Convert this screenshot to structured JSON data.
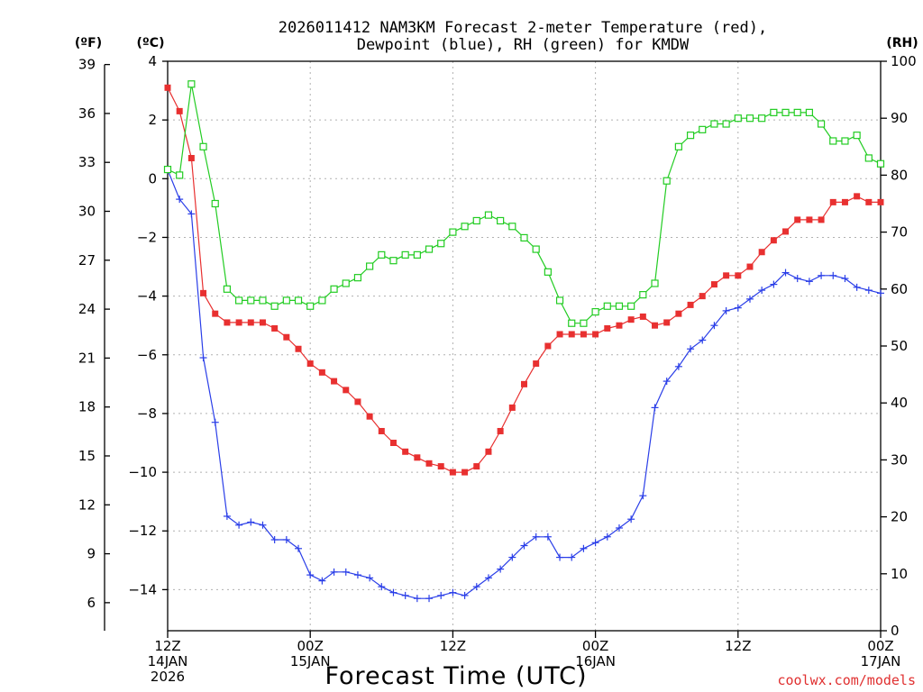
{
  "chart_data": {
    "type": "line",
    "title": [
      "2026011412 NAM3KM Forecast 2-meter Temperature (red),",
      "Dewpoint (blue), RH (green) for KMDW"
    ],
    "xlabel": "Forecast Time (UTC)",
    "credit": "coolwx.com/models",
    "units": {
      "fahrenheit": "(ºF)",
      "celsius": "(ºC)",
      "rh": "(RH)"
    },
    "x_ticks": [
      {
        "hour": 0,
        "lines": [
          "12Z",
          "14JAN",
          "2026"
        ]
      },
      {
        "hour": 12,
        "lines": [
          "00Z",
          "15JAN"
        ]
      },
      {
        "hour": 24,
        "lines": [
          "12Z"
        ]
      },
      {
        "hour": 36,
        "lines": [
          "00Z",
          "16JAN"
        ]
      },
      {
        "hour": 48,
        "lines": [
          "12Z"
        ]
      },
      {
        "hour": 60,
        "lines": [
          "00Z",
          "17JAN"
        ]
      }
    ],
    "x_range": [
      0,
      60
    ],
    "y_celsius": {
      "range": [
        -15.4,
        4
      ],
      "ticks": [
        "4",
        "2",
        "0",
        "−2",
        "−4",
        "−6",
        "−8",
        "−10",
        "−12",
        "−14"
      ],
      "tick_values": [
        4,
        2,
        0,
        -2,
        -4,
        -6,
        -8,
        -10,
        -12,
        -14
      ]
    },
    "y_fahrenheit": {
      "ticks": [
        "39",
        "36",
        "33",
        "30",
        "27",
        "24",
        "21",
        "18",
        "15",
        "12",
        "9",
        "6"
      ],
      "tick_values": [
        39,
        36,
        33,
        30,
        27,
        24,
        21,
        18,
        15,
        12,
        9,
        6
      ]
    },
    "y_rh": {
      "range": [
        0,
        100
      ],
      "ticks": [
        "100",
        "90",
        "80",
        "70",
        "60",
        "50",
        "40",
        "30",
        "20",
        "10",
        "0"
      ],
      "tick_values": [
        100,
        90,
        80,
        70,
        60,
        50,
        40,
        30,
        20,
        10,
        0
      ]
    },
    "x": [
      0,
      1,
      2,
      3,
      4,
      5,
      6,
      7,
      8,
      9,
      10,
      11,
      12,
      13,
      14,
      15,
      16,
      17,
      18,
      19,
      20,
      21,
      22,
      23,
      24,
      25,
      26,
      27,
      28,
      29,
      30,
      31,
      32,
      33,
      34,
      35,
      36,
      37,
      38,
      39,
      40,
      41,
      42,
      43,
      44,
      45,
      46,
      47,
      48,
      49,
      50,
      51,
      52,
      53,
      54,
      55,
      56,
      57,
      58,
      59,
      60
    ],
    "series": [
      {
        "name": "2-meter Temperature",
        "unit": "C",
        "color": "#e83030",
        "marker": "filled-square",
        "values": [
          3.1,
          2.3,
          0.7,
          -3.9,
          -4.6,
          -4.9,
          -4.9,
          -4.9,
          -4.9,
          -5.1,
          -5.4,
          -5.8,
          -6.3,
          -6.6,
          -6.9,
          -7.2,
          -7.6,
          -8.1,
          -8.6,
          -9.0,
          -9.3,
          -9.5,
          -9.7,
          -9.8,
          -10.0,
          -10.0,
          -9.8,
          -9.3,
          -8.6,
          -7.8,
          -7.0,
          -6.3,
          -5.7,
          -5.3,
          -5.3,
          -5.3,
          -5.3,
          -5.1,
          -5.0,
          -4.8,
          -4.7,
          -5.0,
          -4.9,
          -4.6,
          -4.3,
          -4.0,
          -3.6,
          -3.3,
          -3.3,
          -3.0,
          -2.5,
          -2.1,
          -1.8,
          -1.4,
          -1.4,
          -1.4,
          -0.8,
          -0.8,
          -0.6,
          -0.8,
          -0.8
        ]
      },
      {
        "name": "Dewpoint",
        "unit": "C",
        "color": "#2a3ee8",
        "marker": "plus",
        "values": [
          0.3,
          -0.7,
          -1.2,
          -6.1,
          -8.3,
          -11.5,
          -11.8,
          -11.7,
          -11.8,
          -12.3,
          -12.3,
          -12.6,
          -13.5,
          -13.7,
          -13.4,
          -13.4,
          -13.5,
          -13.6,
          -13.9,
          -14.1,
          -14.2,
          -14.3,
          -14.3,
          -14.2,
          -14.1,
          -14.2,
          -13.9,
          -13.6,
          -13.3,
          -12.9,
          -12.5,
          -12.2,
          -12.2,
          -12.9,
          -12.9,
          -12.6,
          -12.4,
          -12.2,
          -11.9,
          -11.6,
          -10.8,
          -7.8,
          -6.9,
          -6.4,
          -5.8,
          -5.5,
          -5.0,
          -4.5,
          -4.4,
          -4.1,
          -3.8,
          -3.6,
          -3.2,
          -3.4,
          -3.5,
          -3.3,
          -3.3,
          -3.4,
          -3.7,
          -3.8,
          -3.9
        ]
      },
      {
        "name": "Relative Humidity",
        "unit": "%",
        "color": "#22cc22",
        "marker": "open-square",
        "values": [
          81,
          80,
          96,
          85,
          75,
          60,
          58,
          58,
          58,
          57,
          58,
          58,
          57,
          58,
          60,
          61,
          62,
          64,
          66,
          65,
          66,
          66,
          67,
          68,
          70,
          71,
          72,
          73,
          72,
          71,
          69,
          67,
          63,
          58,
          54,
          54,
          56,
          57,
          57,
          57,
          59,
          61,
          79,
          85,
          87,
          88,
          89,
          89,
          90,
          90,
          90,
          91,
          91,
          91,
          91,
          89,
          86,
          86,
          87,
          83,
          82
        ]
      }
    ]
  }
}
